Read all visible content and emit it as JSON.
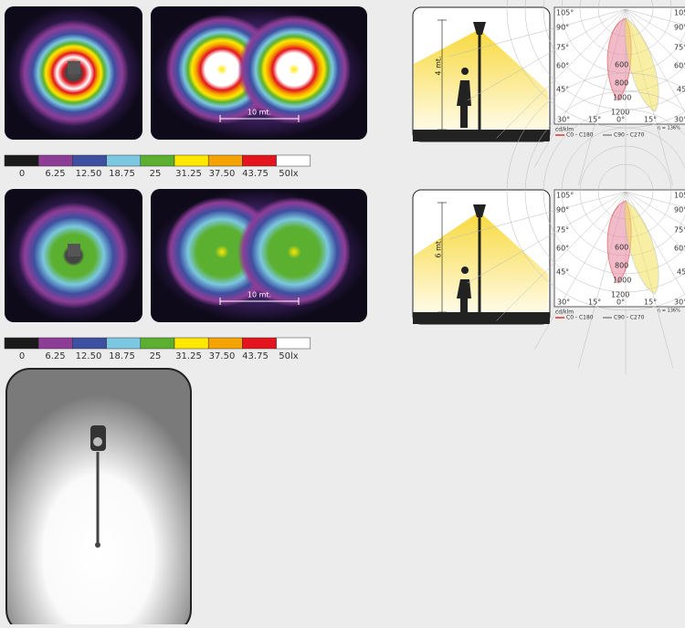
{
  "sections": [
    {
      "scale_label": "10 mt.",
      "legend": [
        "0",
        "6.25",
        "12.50",
        "18.75",
        "25",
        "31.25",
        "37.50",
        "43.75",
        "50lx"
      ]
    },
    {
      "scale_label": "10 mt.",
      "legend": [
        "0",
        "6.25",
        "12.50",
        "18.75",
        "25",
        "31.25",
        "37.50",
        "43.75",
        "50lx"
      ]
    }
  ],
  "diagrams": [
    {
      "height_label": "4 mt.",
      "polar": {
        "left_angles": [
          "105°",
          "90°",
          "75°",
          "60°",
          "45°"
        ],
        "right_angles": [
          "105°",
          "90°",
          "75°",
          "60°",
          "45°"
        ],
        "bottom_angles": [
          "30°",
          "15°",
          "0°",
          "15°",
          "30°"
        ],
        "radial": [
          "600",
          "800",
          "1000",
          "1200"
        ],
        "unit": "cd/klm",
        "legend": [
          "C0 - C180",
          "C90 - C270"
        ],
        "efficiency": "η = 136%"
      }
    },
    {
      "height_label": "6 mt.",
      "polar": {
        "left_angles": [
          "105°",
          "90°",
          "75°",
          "60°",
          "45°"
        ],
        "right_angles": [
          "105°",
          "90°",
          "75°",
          "60°",
          "45°"
        ],
        "bottom_angles": [
          "30°",
          "15°",
          "0°",
          "15°",
          "30°"
        ],
        "radial": [
          "600",
          "800",
          "1000",
          "1200"
        ],
        "unit": "cd/klm",
        "legend": [
          "C0 - C180",
          "C90 - C270"
        ],
        "efficiency": "η = 136%"
      }
    }
  ]
}
